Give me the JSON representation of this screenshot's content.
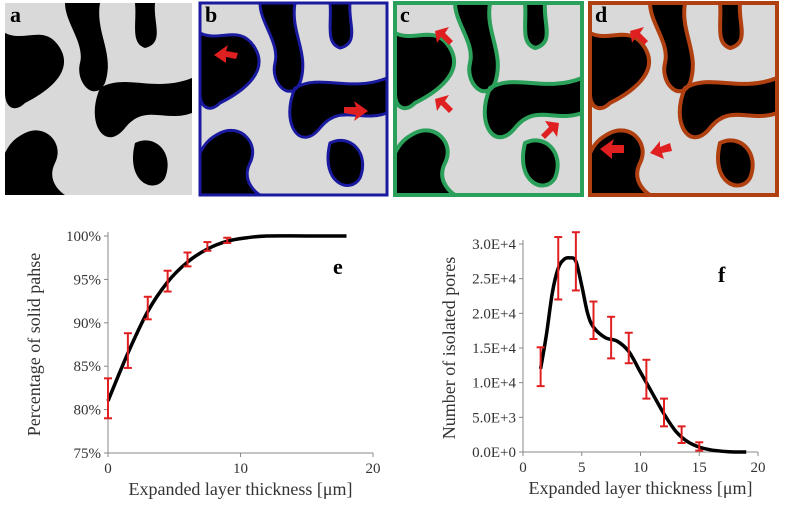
{
  "panels": [
    {
      "label": "a"
    },
    {
      "label": "b"
    },
    {
      "label": "c"
    },
    {
      "label": "d"
    }
  ],
  "chart_data": [
    {
      "type": "line",
      "label": "e",
      "ylabel": "Percentage of solid pahse",
      "xlabel": "Expanded layer thickness [μm]",
      "xlim": [
        0,
        20
      ],
      "xticks": [
        0,
        10,
        20
      ],
      "ylim": [
        75,
        100
      ],
      "yticks": [
        {
          "value": 75,
          "label": "75%"
        },
        {
          "value": 80,
          "label": "80%"
        },
        {
          "value": 85,
          "label": "85%"
        },
        {
          "value": 90,
          "label": "90%"
        },
        {
          "value": 95,
          "label": "95%"
        },
        {
          "value": 100,
          "label": "100%"
        }
      ],
      "series": [
        {
          "color": "#000000",
          "x": [
            0,
            1.5,
            3,
            4.5,
            6,
            7.5,
            9,
            10.5,
            12,
            15,
            18
          ],
          "values": [
            81,
            86.5,
            91.3,
            94.7,
            97,
            98.5,
            99.4,
            99.8,
            100,
            100,
            100
          ]
        },
        {
          "color": "#e02020",
          "x": [
            0,
            1.5,
            3,
            4.5,
            6,
            7.5,
            9
          ],
          "values": [
            81.3,
            86.8,
            91.7,
            94.8,
            97.3,
            98.8,
            99.5
          ],
          "errors": [
            2.3,
            2,
            1.3,
            1.2,
            0.8,
            0.5,
            0.3
          ]
        }
      ]
    },
    {
      "type": "line",
      "label": "f",
      "ylabel": "Number of isolated pores",
      "xlabel": "Expanded layer thickness [μm]",
      "xlim": [
        0,
        20
      ],
      "xticks": [
        0,
        5,
        10,
        15,
        20
      ],
      "ylim": [
        0,
        30000
      ],
      "yticks": [
        {
          "value": 0,
          "label": "0.0E+0"
        },
        {
          "value": 5000,
          "label": "5.0E+3"
        },
        {
          "value": 10000,
          "label": "1.0E+4"
        },
        {
          "value": 15000,
          "label": "1.5E+4"
        },
        {
          "value": 20000,
          "label": "2.0E+4"
        },
        {
          "value": 25000,
          "label": "2.5E+4"
        },
        {
          "value": 30000,
          "label": "3.0E+4"
        }
      ],
      "series": [
        {
          "color": "#000000",
          "x": [
            1.5,
            2,
            2.5,
            3,
            3.5,
            4,
            4.5,
            5,
            5.5,
            6,
            7,
            8,
            9,
            10,
            11,
            12,
            13,
            14,
            15,
            16,
            17,
            18,
            19
          ],
          "values": [
            12000,
            17000,
            23000,
            26500,
            27800,
            28000,
            27500,
            24000,
            20000,
            18000,
            16500,
            16000,
            14500,
            11500,
            8500,
            5500,
            3000,
            1500,
            700,
            300,
            100,
            0,
            0
          ]
        },
        {
          "color": "#e02020",
          "x": [
            1.5,
            3,
            4.5,
            6,
            7.5,
            9,
            10.5,
            12,
            13.5,
            15
          ],
          "values": [
            12300,
            26500,
            27500,
            19000,
            16500,
            15000,
            10500,
            5700,
            2500,
            800
          ],
          "errors": [
            2800,
            4500,
            4200,
            2700,
            3000,
            2200,
            2800,
            2000,
            1200,
            600
          ]
        }
      ]
    }
  ]
}
